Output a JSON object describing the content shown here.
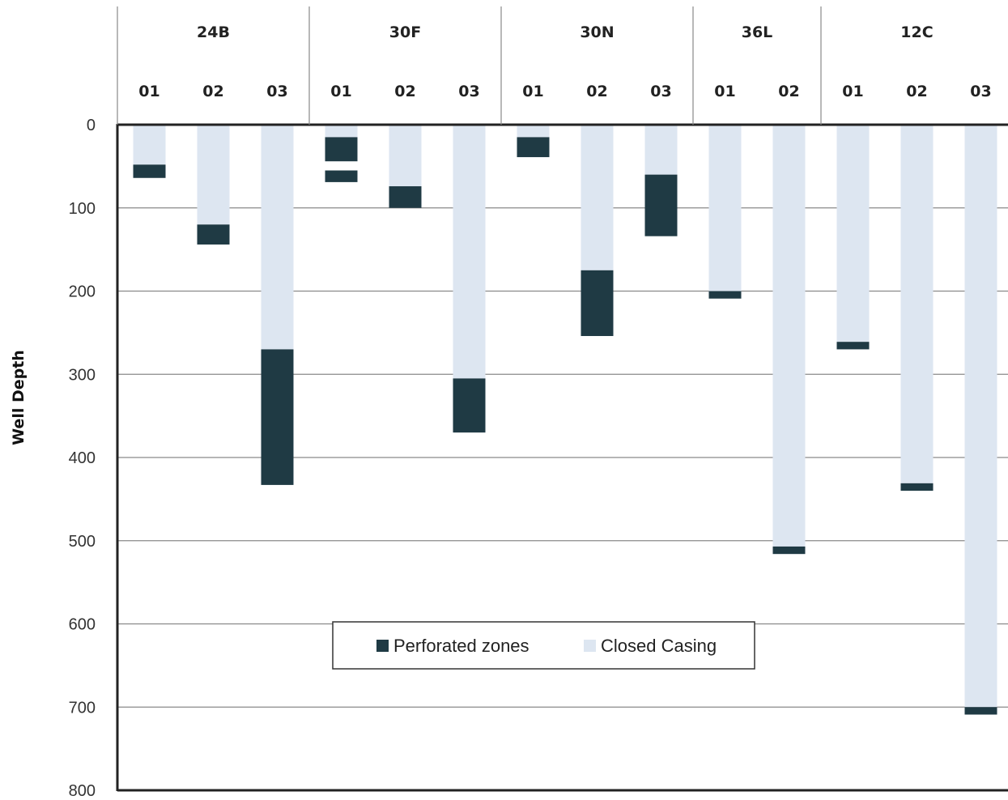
{
  "chart_data": {
    "type": "bar",
    "stacked": true,
    "ylabel": "Well Depth",
    "y_inverted": true,
    "ylim": [
      0,
      800
    ],
    "yticks": [
      0,
      100,
      200,
      300,
      400,
      500,
      600,
      700,
      800
    ],
    "grid": true,
    "legend": {
      "placement": "bottom-center",
      "entries": [
        {
          "label": "Perforated zones",
          "color": "#1f3a44"
        },
        {
          "label": "Closed Casing",
          "color": "#dde6f1"
        }
      ]
    },
    "groups": [
      {
        "name": "24B",
        "wells": [
          {
            "label": "01",
            "casing": [
              0,
              48
            ],
            "perforated": [
              [
                48,
                64
              ]
            ]
          },
          {
            "label": "02",
            "casing": [
              0,
              120
            ],
            "perforated": [
              [
                120,
                144
              ]
            ]
          },
          {
            "label": "03",
            "casing": [
              0,
              270
            ],
            "perforated": [
              [
                270,
                433
              ]
            ]
          }
        ]
      },
      {
        "name": "30F",
        "wells": [
          {
            "label": "01",
            "casing": [
              0,
              15
            ],
            "perforated": [
              [
                15,
                44
              ],
              [
                55,
                69
              ]
            ]
          },
          {
            "label": "02",
            "casing": [
              0,
              74
            ],
            "perforated": [
              [
                74,
                100
              ]
            ]
          },
          {
            "label": "03",
            "casing": [
              0,
              305
            ],
            "perforated": [
              [
                305,
                370
              ]
            ]
          }
        ]
      },
      {
        "name": "30N",
        "wells": [
          {
            "label": "01",
            "casing": [
              0,
              15
            ],
            "perforated": [
              [
                15,
                39
              ]
            ]
          },
          {
            "label": "02",
            "casing": [
              0,
              175
            ],
            "perforated": [
              [
                175,
                254
              ]
            ]
          },
          {
            "label": "03",
            "casing": [
              0,
              60
            ],
            "perforated": [
              [
                60,
                134
              ]
            ]
          }
        ]
      },
      {
        "name": "36L",
        "wells": [
          {
            "label": "01",
            "casing": [
              0,
              200
            ],
            "perforated": [
              [
                200,
                209
              ]
            ]
          },
          {
            "label": "02",
            "casing": [
              0,
              507
            ],
            "perforated": [
              [
                507,
                516
              ]
            ]
          }
        ]
      },
      {
        "name": "12C",
        "wells": [
          {
            "label": "01",
            "casing": [
              0,
              261
            ],
            "perforated": [
              [
                261,
                270
              ]
            ]
          },
          {
            "label": "02",
            "casing": [
              0,
              431
            ],
            "perforated": [
              [
                431,
                440
              ]
            ]
          },
          {
            "label": "03",
            "casing": [
              0,
              700
            ],
            "perforated": [
              [
                700,
                709
              ]
            ]
          }
        ]
      }
    ]
  }
}
